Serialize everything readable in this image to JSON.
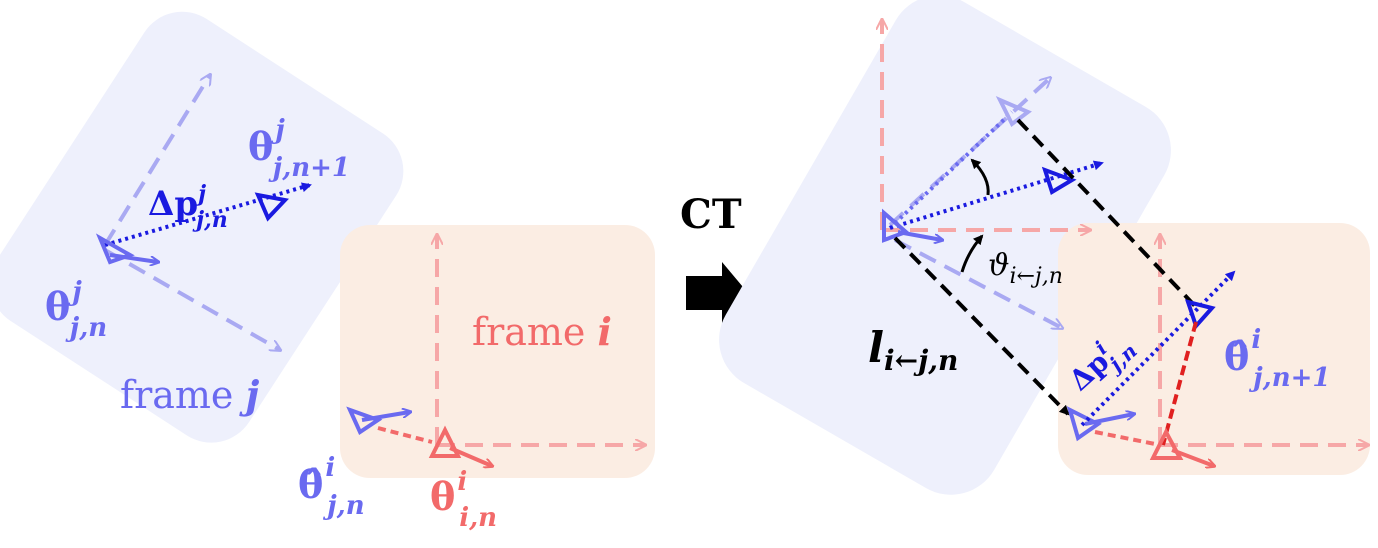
{
  "diagram": {
    "left": {
      "frame_j_label": "frame",
      "frame_j_var": "j",
      "frame_i_label": "frame",
      "frame_i_var": "i",
      "delta_p": {
        "sym": "Δp",
        "sup": "j",
        "sub": "j,n"
      },
      "theta_j_n": {
        "sym": "θ",
        "sup": "j",
        "sub": "j,n"
      },
      "theta_j_n1": {
        "sym": "θ",
        "sup": "j",
        "sub": "j,n+1"
      },
      "theta_hat_j_n": {
        "sym": "θ̂",
        "sup": "i",
        "sub": "j,n"
      },
      "theta_i_n": {
        "sym": "θ",
        "sup": "i",
        "sub": "i,n"
      }
    },
    "transition": {
      "label": "CT",
      "arrow_icon": "right-arrow-icon"
    },
    "right": {
      "l_label": {
        "sym": "l",
        "sub": "i←j,n"
      },
      "angle_label": {
        "sym": "ϑ",
        "sub": "i←j,n"
      },
      "delta_p": {
        "sym": "Δp",
        "sup": "i",
        "sub": "j,n"
      },
      "theta_hat_j_n1": {
        "sym": "θ̂",
        "sup": "i",
        "sub": "j,n+1"
      }
    },
    "colors": {
      "frame_j_fill": "#eef0fc",
      "frame_i_fill": "#fbece2",
      "blue_dark": "#1a1ae0",
      "blue_mid": "#6a6af0",
      "blue_light": "#a9a9f2",
      "red": "#f26a6a",
      "red_light": "#f6a7a7",
      "red_strong": "#e02020",
      "black": "#000000"
    }
  }
}
